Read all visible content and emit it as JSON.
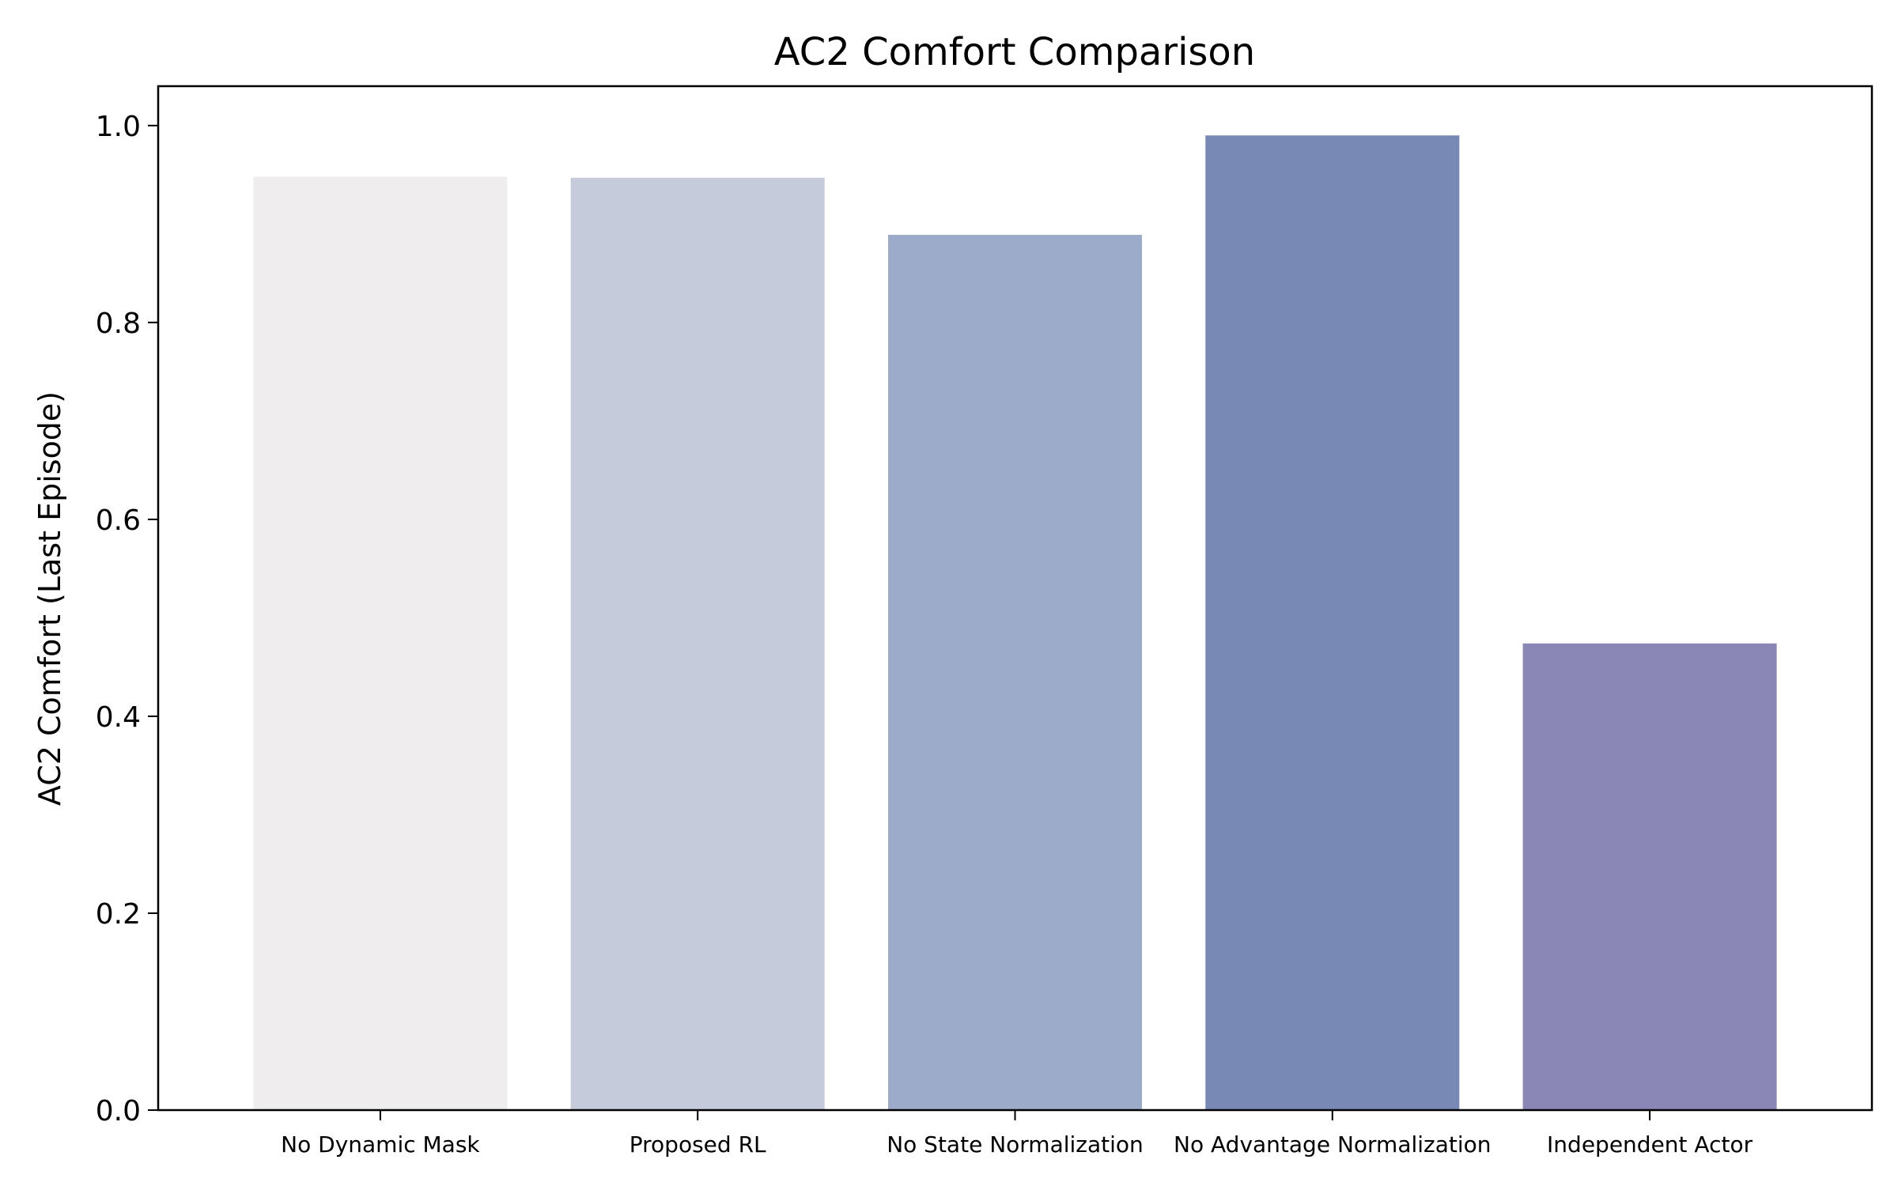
{
  "chart_data": {
    "type": "bar",
    "title": "AC2 Comfort Comparison",
    "xlabel": "",
    "ylabel": "AC2 Comfort (Last Episode)",
    "categories": [
      "No Dynamic Mask",
      "Proposed RL",
      "No State Normalization",
      "No Advantage Normalization",
      "Independent Actor"
    ],
    "values": [
      0.948,
      0.947,
      0.889,
      0.99,
      0.474
    ],
    "colors": [
      "#efedee",
      "#c5cbdb",
      "#9dabca",
      "#7889b6",
      "#8a86b6"
    ],
    "ylim": [
      0,
      1.04
    ],
    "yticks": [
      0.0,
      0.2,
      0.4,
      0.6,
      0.8,
      1.0
    ],
    "ytick_labels": [
      "0.0",
      "0.2",
      "0.4",
      "0.6",
      "0.8",
      "1.0"
    ],
    "grid": false,
    "legend": "none"
  }
}
